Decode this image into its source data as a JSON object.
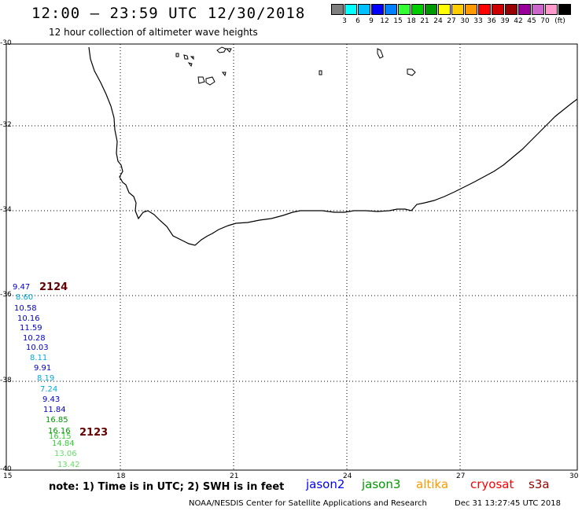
{
  "header": {
    "title": "12:00 – 23:59 UTC 12/30/2018",
    "subtitle": "12 hour collection of altimeter wave heights"
  },
  "legend": {
    "colors": [
      "#7f7f7f",
      "#00ffff",
      "#00bfff",
      "#0000ff",
      "#007fff",
      "#33ff33",
      "#00cc00",
      "#009900",
      "#ffff00",
      "#ffcc00",
      "#ff9900",
      "#ff0000",
      "#cc0000",
      "#990000",
      "#990099",
      "#cc66cc",
      "#ff99cc",
      "#000000"
    ],
    "labels": [
      "3",
      "6",
      "9",
      "12",
      "15",
      "18",
      "21",
      "24",
      "27",
      "30",
      "33",
      "36",
      "39",
      "42",
      "45",
      "70"
    ],
    "unit": "(ft)"
  },
  "axes": {
    "lat_labels": [
      "-30",
      "-32",
      "-34",
      "-36",
      "-38",
      "-40"
    ],
    "lon_labels": [
      "15",
      "18",
      "21",
      "24",
      "27",
      "30"
    ]
  },
  "passes": [
    {
      "id": "2124",
      "color": "#660000"
    },
    {
      "id": "2123",
      "color": "#660000"
    }
  ],
  "observations": [
    {
      "value": "9.47",
      "color": "#0000cc"
    },
    {
      "value": "8.60",
      "color": "#00aadd"
    },
    {
      "value": "10.58",
      "color": "#0000cc"
    },
    {
      "value": "10.16",
      "color": "#0000cc"
    },
    {
      "value": "11.59",
      "color": "#0000cc"
    },
    {
      "value": "10.28",
      "color": "#0000cc"
    },
    {
      "value": "10.03",
      "color": "#0000cc"
    },
    {
      "value": "8.11",
      "color": "#00aadd"
    },
    {
      "value": "9.91",
      "color": "#0000cc"
    },
    {
      "value": "8.19",
      "color": "#00aadd"
    },
    {
      "value": "7.24",
      "color": "#00aadd"
    },
    {
      "value": "9.43",
      "color": "#0000cc"
    },
    {
      "value": "11.84",
      "color": "#0000cc"
    },
    {
      "value": "16.85",
      "color": "#009900"
    },
    {
      "value": "16.16",
      "color": "#009900"
    },
    {
      "value": "16.15",
      "color": "#33cc33"
    },
    {
      "value": "14.84",
      "color": "#33cc33"
    },
    {
      "value": "13.06",
      "color": "#66dd66"
    },
    {
      "value": "13.42",
      "color": "#66dd66"
    }
  ],
  "footer": {
    "note": "note: 1) Time is in UTC; 2) SWH is in feet",
    "satellites": [
      {
        "name": "jason2",
        "color": "#0000ff"
      },
      {
        "name": "jason3",
        "color": "#009900"
      },
      {
        "name": "altika",
        "color": "#ff9900"
      },
      {
        "name": "cryosat",
        "color": "#ff0000"
      },
      {
        "name": "s3a",
        "color": "#990000"
      }
    ],
    "credit": "NOAA/NESDIS Center for Satellite Applications and Research",
    "timestamp": "Dec 31 13:27:45 UTC 2018"
  }
}
